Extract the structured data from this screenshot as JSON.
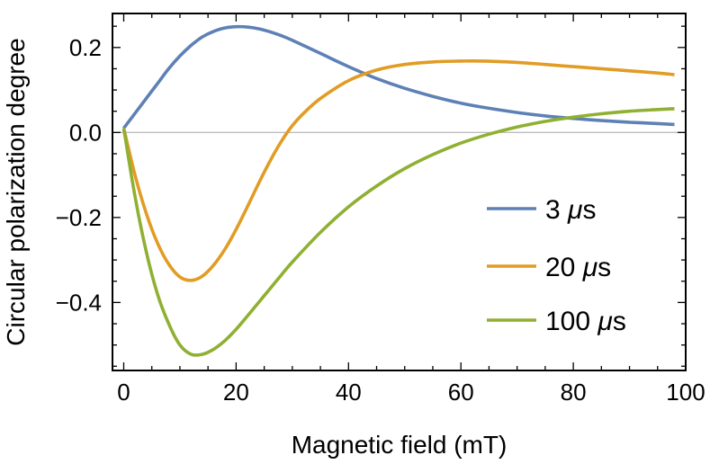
{
  "chart_data": {
    "type": "line",
    "title": "",
    "xlabel": "Magnetic field (mT)",
    "ylabel": "Circular polarization degree",
    "xlim": [
      -2,
      100
    ],
    "ylim": [
      -0.56,
      0.28
    ],
    "xticks": [
      0,
      20,
      40,
      60,
      80,
      100
    ],
    "xtick_labels": [
      "0",
      "20",
      "40",
      "60",
      "80",
      "100"
    ],
    "yticks": [
      -0.4,
      -0.2,
      0.0,
      0.2
    ],
    "ytick_labels": [
      "−0.4",
      "−0.2",
      "0.0",
      "0.2"
    ],
    "grid": false,
    "zero_line": true,
    "legend_position": "right",
    "series": [
      {
        "name": "3 μs",
        "legend_label": {
          "num": "3",
          "unit": "μs"
        },
        "color": "#5e81b5",
        "x": [
          0,
          2,
          4,
          6,
          8,
          10,
          12,
          14,
          16,
          18,
          20,
          22,
          24,
          26,
          28,
          30,
          35,
          40,
          45,
          50,
          55,
          60,
          65,
          70,
          75,
          80,
          85,
          90,
          95,
          98
        ],
        "y": [
          0.01,
          0.045,
          0.08,
          0.115,
          0.15,
          0.18,
          0.205,
          0.225,
          0.238,
          0.246,
          0.249,
          0.248,
          0.244,
          0.237,
          0.228,
          0.217,
          0.186,
          0.155,
          0.127,
          0.104,
          0.085,
          0.069,
          0.057,
          0.047,
          0.039,
          0.033,
          0.028,
          0.024,
          0.021,
          0.019
        ]
      },
      {
        "name": "20 μs",
        "legend_label": {
          "num": "20",
          "unit": "μs"
        },
        "color": "#e19c24",
        "x": [
          0,
          2,
          4,
          6,
          8,
          10,
          12,
          14,
          16,
          18,
          20,
          22,
          24,
          26,
          28,
          30,
          32,
          35,
          40,
          45,
          50,
          55,
          60,
          64,
          70,
          75,
          80,
          85,
          90,
          95,
          98
        ],
        "y": [
          0.01,
          -0.1,
          -0.19,
          -0.26,
          -0.31,
          -0.34,
          -0.348,
          -0.338,
          -0.312,
          -0.275,
          -0.228,
          -0.175,
          -0.12,
          -0.068,
          -0.022,
          0.016,
          0.045,
          0.08,
          0.122,
          0.147,
          0.16,
          0.166,
          0.168,
          0.168,
          0.165,
          0.16,
          0.155,
          0.15,
          0.145,
          0.14,
          0.136
        ]
      },
      {
        "name": "100 μs",
        "legend_label": {
          "num": "100",
          "unit": "μs"
        },
        "color": "#8fb032",
        "x": [
          0,
          2,
          4,
          6,
          8,
          10,
          12,
          14,
          16,
          18,
          20,
          22,
          24,
          26,
          28,
          30,
          35,
          40,
          45,
          50,
          55,
          60,
          65,
          70,
          75,
          80,
          85,
          90,
          95,
          98
        ],
        "y": [
          0.01,
          -0.15,
          -0.28,
          -0.38,
          -0.45,
          -0.5,
          -0.522,
          -0.522,
          -0.51,
          -0.49,
          -0.463,
          -0.432,
          -0.4,
          -0.368,
          -0.336,
          -0.305,
          -0.235,
          -0.175,
          -0.126,
          -0.085,
          -0.052,
          -0.025,
          -0.004,
          0.013,
          0.026,
          0.036,
          0.044,
          0.05,
          0.054,
          0.056
        ]
      }
    ]
  }
}
